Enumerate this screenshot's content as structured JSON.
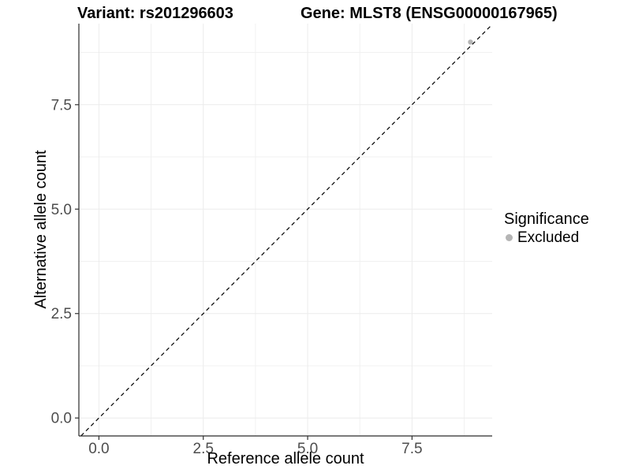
{
  "header": {
    "variant_title": "Variant: rs201296603",
    "gene_title": "Gene: MLST8 (ENSG00000167965)"
  },
  "chart_data": {
    "type": "scatter",
    "title_left": "Variant: rs201296603",
    "title_right": "Gene: MLST8 (ENSG00000167965)",
    "xlabel": "Reference allele count",
    "ylabel": "Alternative allele count",
    "x_tick_labels": [
      "0.0",
      "2.5",
      "5.0",
      "7.5"
    ],
    "x_tick_values": [
      0,
      2.5,
      5,
      7.5
    ],
    "y_tick_labels": [
      "0.0",
      "2.5",
      "5.0",
      "7.5"
    ],
    "y_tick_values": [
      0,
      2.5,
      5,
      7.5
    ],
    "xlim": [
      -0.48,
      9.42
    ],
    "ylim": [
      -0.43,
      9.44
    ],
    "grid": "on",
    "minor_grid": "on",
    "identity_line": {
      "slope": 1,
      "intercept": 0,
      "style": "dashed",
      "color": "#000000"
    },
    "series": [
      {
        "name": "Excluded",
        "color": "#b5b5b5",
        "points": [
          {
            "x": 8.9,
            "y": 9.0
          }
        ]
      }
    ],
    "legend": {
      "title": "Significance",
      "position": "right",
      "items": [
        {
          "label": "Excluded",
          "color": "#b5b5b5"
        }
      ]
    }
  },
  "colors": {
    "background": "#ffffff",
    "grid_major": "#ececec",
    "grid_minor": "#f1f1f1",
    "axis_line": "#2b2b2b",
    "tick_mark": "#333333",
    "tick_text": "#4d4d4d",
    "point": "#b5b5b5",
    "dashed_line": "#000000"
  }
}
